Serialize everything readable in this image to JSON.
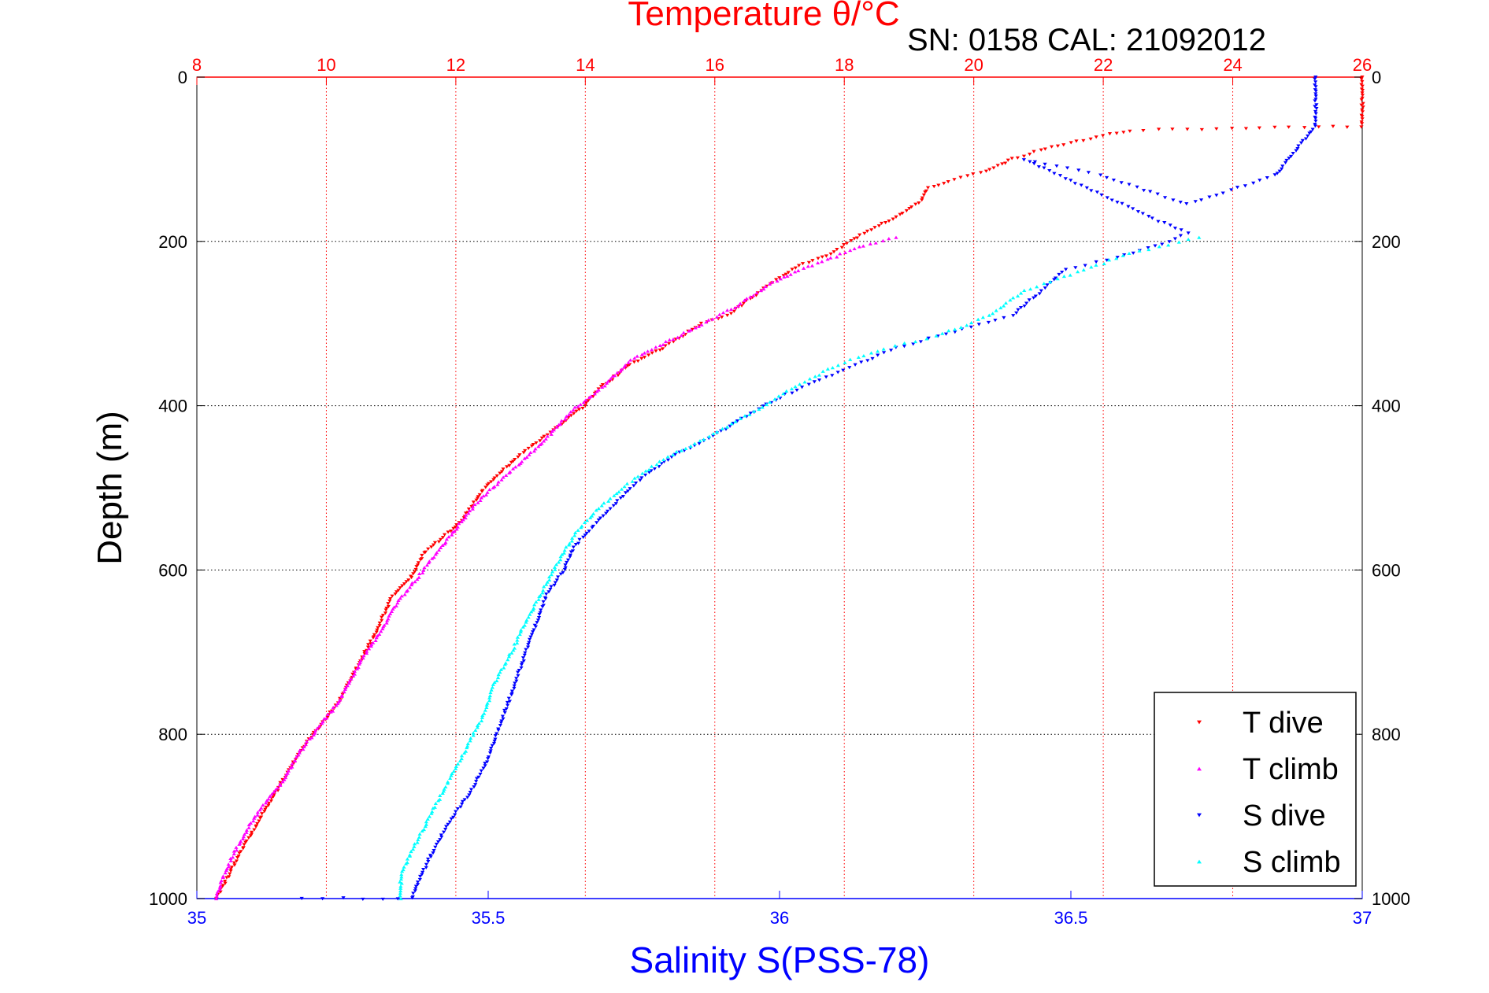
{
  "chart_data": {
    "type": "scatter",
    "title": "Temperature θ/°C",
    "subtitle": "SN: 0158  CAL: 21092012",
    "ylabel": "Depth (m)",
    "xlabel_bottom": "Salinity S(PSS-78)",
    "y_axis": {
      "range": [
        0,
        1000
      ],
      "reversed": true,
      "ticks": [
        "0",
        "200",
        "400",
        "600",
        "800",
        "1000"
      ],
      "both_sides": true
    },
    "x_top": {
      "range": [
        8,
        26
      ],
      "ticks": [
        "8",
        "10",
        "12",
        "14",
        "16",
        "18",
        "20",
        "22",
        "24",
        "26"
      ],
      "color": "#ff0000"
    },
    "x_bottom": {
      "range": [
        35,
        37
      ],
      "ticks": [
        "35",
        "35.5",
        "36",
        "36.5",
        "37"
      ],
      "color": "#0000ff"
    },
    "grid": true,
    "legend_position": "bottom-right",
    "series": [
      {
        "name": "T dive",
        "axis": "top",
        "color": "#ff0000",
        "marker": "down-triangle",
        "points": [
          [
            26,
            0
          ],
          [
            26,
            20
          ],
          [
            26,
            40
          ],
          [
            26,
            60
          ],
          [
            22.4,
            65
          ],
          [
            21.8,
            75
          ],
          [
            21.2,
            85
          ],
          [
            20.6,
            100
          ],
          [
            20.2,
            115
          ],
          [
            19.7,
            125
          ],
          [
            19.3,
            135
          ],
          [
            19.2,
            150
          ],
          [
            18.8,
            170
          ],
          [
            18.3,
            190
          ],
          [
            17.8,
            215
          ],
          [
            17.3,
            230
          ],
          [
            16.8,
            255
          ],
          [
            16.2,
            290
          ],
          [
            15.8,
            300
          ],
          [
            15.2,
            330
          ],
          [
            14.7,
            350
          ],
          [
            14.2,
            380
          ],
          [
            14.0,
            400
          ],
          [
            13.5,
            430
          ],
          [
            13.0,
            460
          ],
          [
            12.7,
            480
          ],
          [
            12.4,
            505
          ],
          [
            12.1,
            540
          ],
          [
            11.8,
            560
          ],
          [
            11.5,
            580
          ],
          [
            11.3,
            610
          ],
          [
            11.0,
            635
          ],
          [
            10.8,
            670
          ],
          [
            10.6,
            700
          ],
          [
            10.4,
            730
          ],
          [
            10.2,
            760
          ],
          [
            9.9,
            790
          ],
          [
            9.6,
            820
          ],
          [
            9.3,
            860
          ],
          [
            9.0,
            900
          ],
          [
            8.7,
            940
          ],
          [
            8.5,
            970
          ],
          [
            8.3,
            1000
          ]
        ]
      },
      {
        "name": "T climb",
        "axis": "top",
        "color": "#ff00ff",
        "marker": "up-triangle",
        "points": [
          [
            18.8,
            195
          ],
          [
            18.3,
            205
          ],
          [
            17.8,
            220
          ],
          [
            17.3,
            235
          ],
          [
            16.9,
            250
          ],
          [
            16.3,
            280
          ],
          [
            15.7,
            305
          ],
          [
            15.2,
            325
          ],
          [
            14.7,
            345
          ],
          [
            14.3,
            375
          ],
          [
            13.8,
            405
          ],
          [
            13.4,
            440
          ],
          [
            13.0,
            470
          ],
          [
            12.7,
            490
          ],
          [
            12.3,
            520
          ],
          [
            11.9,
            560
          ],
          [
            11.5,
            600
          ],
          [
            11.1,
            640
          ],
          [
            10.8,
            680
          ],
          [
            10.5,
            715
          ],
          [
            10.2,
            760
          ],
          [
            9.9,
            790
          ],
          [
            9.6,
            820
          ],
          [
            9.3,
            860
          ],
          [
            8.9,
            900
          ],
          [
            8.6,
            940
          ],
          [
            8.4,
            975
          ],
          [
            8.3,
            1000
          ]
        ]
      },
      {
        "name": "S dive",
        "axis": "bottom",
        "color": "#0000ff",
        "marker": "down-triangle",
        "points": [
          [
            36.92,
            0
          ],
          [
            36.92,
            30
          ],
          [
            36.92,
            60
          ],
          [
            36.85,
            120
          ],
          [
            36.7,
            155
          ],
          [
            36.55,
            120
          ],
          [
            36.42,
            100
          ],
          [
            36.65,
            175
          ],
          [
            36.7,
            190
          ],
          [
            36.67,
            200
          ],
          [
            36.58,
            220
          ],
          [
            36.49,
            235
          ],
          [
            36.45,
            260
          ],
          [
            36.4,
            290
          ],
          [
            36.3,
            310
          ],
          [
            36.2,
            330
          ],
          [
            36.1,
            360
          ],
          [
            36.0,
            390
          ],
          [
            35.95,
            410
          ],
          [
            35.88,
            440
          ],
          [
            35.82,
            460
          ],
          [
            35.77,
            485
          ],
          [
            35.73,
            510
          ],
          [
            35.69,
            540
          ],
          [
            35.65,
            570
          ],
          [
            35.63,
            600
          ],
          [
            35.6,
            630
          ],
          [
            35.58,
            670
          ],
          [
            35.56,
            710
          ],
          [
            35.54,
            750
          ],
          [
            35.52,
            790
          ],
          [
            35.5,
            830
          ],
          [
            35.47,
            870
          ],
          [
            35.43,
            910
          ],
          [
            35.4,
            950
          ],
          [
            35.38,
            980
          ],
          [
            35.37,
            1000
          ],
          [
            35.32,
            1000
          ],
          [
            35.25,
            1000
          ],
          [
            35.18,
            1000
          ]
        ]
      },
      {
        "name": "S climb",
        "axis": "bottom",
        "color": "#00ffff",
        "marker": "up-triangle",
        "points": [
          [
            36.72,
            195
          ],
          [
            36.6,
            215
          ],
          [
            36.5,
            240
          ],
          [
            36.42,
            260
          ],
          [
            36.36,
            290
          ],
          [
            36.27,
            315
          ],
          [
            36.18,
            330
          ],
          [
            36.1,
            350
          ],
          [
            36.02,
            380
          ],
          [
            35.95,
            410
          ],
          [
            35.87,
            440
          ],
          [
            35.8,
            465
          ],
          [
            35.74,
            495
          ],
          [
            35.69,
            525
          ],
          [
            35.65,
            555
          ],
          [
            35.62,
            590
          ],
          [
            35.59,
            630
          ],
          [
            35.56,
            670
          ],
          [
            35.54,
            700
          ],
          [
            35.51,
            740
          ],
          [
            35.49,
            780
          ],
          [
            35.46,
            820
          ],
          [
            35.43,
            860
          ],
          [
            35.4,
            900
          ],
          [
            35.37,
            940
          ],
          [
            35.35,
            970
          ],
          [
            35.35,
            1000
          ]
        ]
      }
    ]
  }
}
